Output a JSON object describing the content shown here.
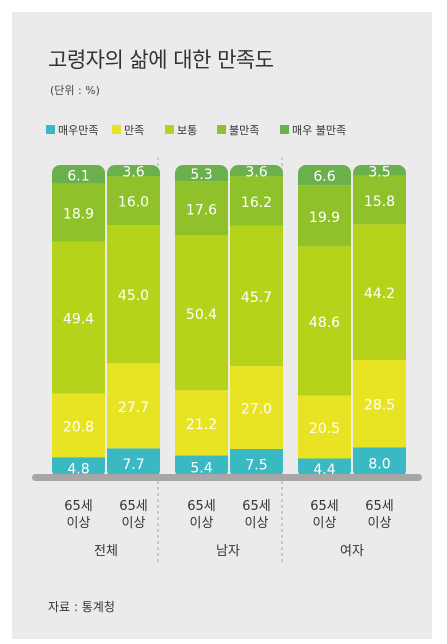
{
  "title": "고령자의 삶에 대한 만족도",
  "unit": "(단위 : %)",
  "source": "자료 : 통계청",
  "colors": {
    "매우만족": "#3bb9c2",
    "만족": "#e9e423",
    "보통": "#b6d31c",
    "불만족": "#8fc22a",
    "매우 불만족": "#6bb04c"
  },
  "chart_data": {
    "type": "bar",
    "stacked": true,
    "ylim": [
      0,
      100
    ],
    "legend_position": "top",
    "grid": false,
    "groups": [
      "전체",
      "남자",
      "여자"
    ],
    "bar_label": [
      "65세",
      "이상"
    ],
    "bars": [
      {
        "group": "전체",
        "label": "65세 이상"
      },
      {
        "group": "전체",
        "label": "65세 이상"
      },
      {
        "group": "남자",
        "label": "65세 이상"
      },
      {
        "group": "남자",
        "label": "65세 이상"
      },
      {
        "group": "여자",
        "label": "65세 이상"
      },
      {
        "group": "여자",
        "label": "65세 이상"
      }
    ],
    "series": [
      {
        "name": "매우만족",
        "values": [
          4.8,
          7.7,
          5.4,
          7.5,
          4.4,
          8.0
        ]
      },
      {
        "name": "만족",
        "values": [
          20.8,
          27.7,
          21.2,
          27.0,
          20.5,
          28.5
        ]
      },
      {
        "name": "보통",
        "values": [
          49.4,
          45.0,
          50.4,
          45.7,
          48.6,
          44.2
        ]
      },
      {
        "name": "불만족",
        "values": [
          18.9,
          16.0,
          17.6,
          16.2,
          19.9,
          15.8
        ]
      },
      {
        "name": "매우 불만족",
        "values": [
          6.1,
          3.6,
          5.3,
          3.6,
          6.6,
          3.5
        ]
      }
    ]
  }
}
